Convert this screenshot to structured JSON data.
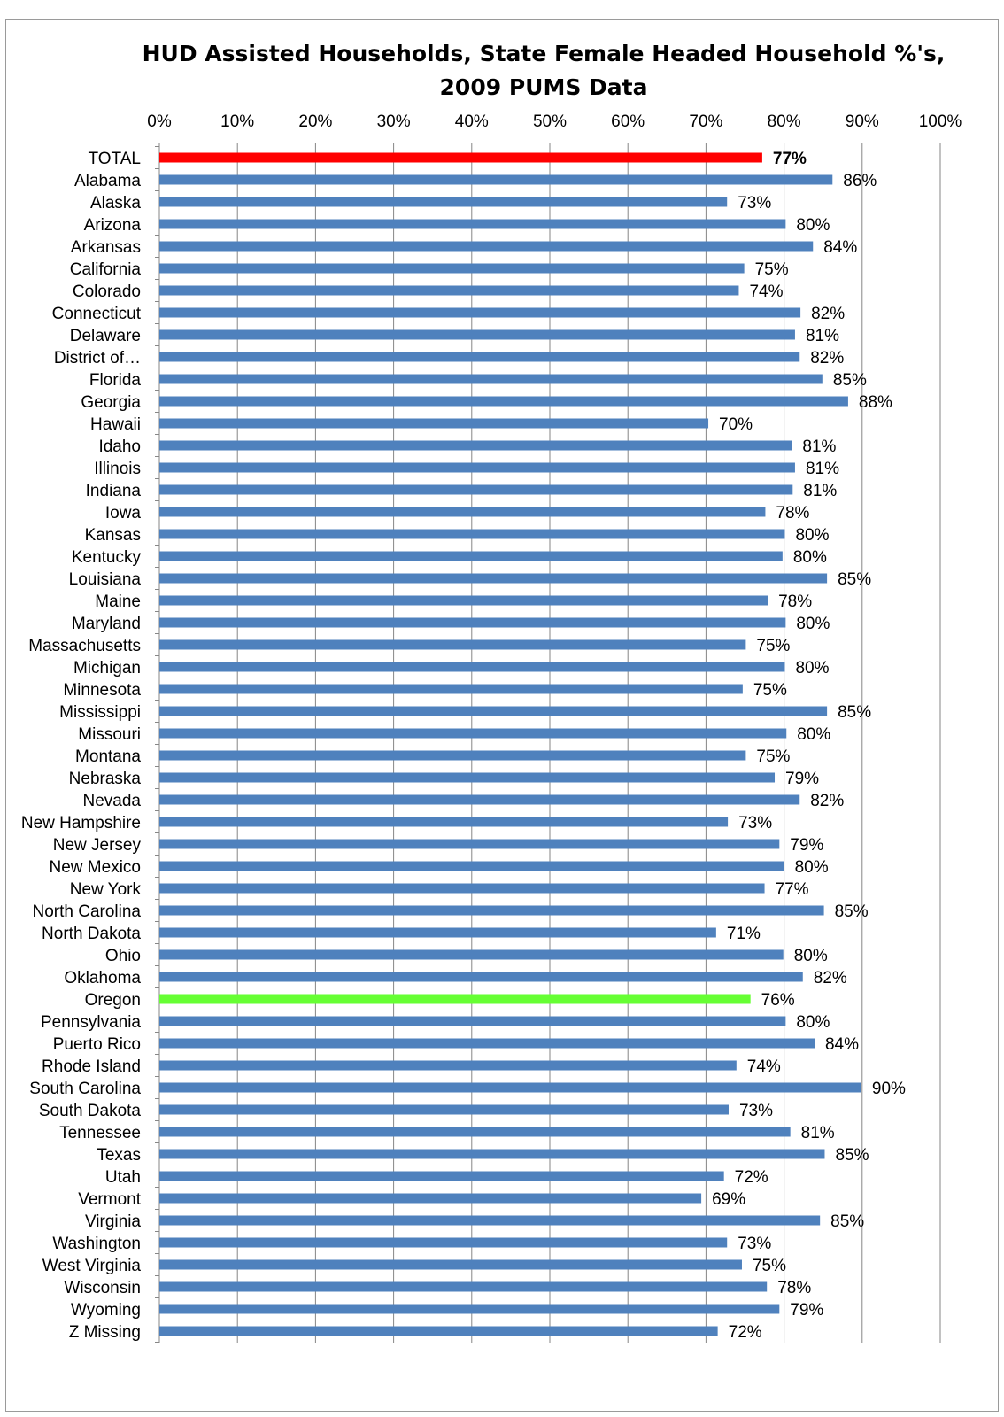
{
  "chart_data": {
    "type": "bar",
    "orientation": "horizontal",
    "title_line1": "HUD Assisted Households, State Female Headed Household %'s,",
    "title_line2": "2009 PUMS Data",
    "xlabel": "",
    "ylabel": "",
    "xlim": [
      0,
      100
    ],
    "xticks": [
      "0%",
      "10%",
      "20%",
      "30%",
      "40%",
      "50%",
      "60%",
      "70%",
      "80%",
      "90%",
      "100%"
    ],
    "grid": true,
    "colors": {
      "default": "#4F81BD",
      "highlight_total": "#FF0000",
      "highlight_oregon": "#66FF33"
    },
    "categories": [
      "TOTAL",
      "Alabama",
      "Alaska",
      "Arizona",
      "Arkansas",
      "California",
      "Colorado",
      "Connecticut",
      "Delaware",
      "District of…",
      "Florida",
      "Georgia",
      "Hawaii",
      "Idaho",
      "Illinois",
      "Indiana",
      "Iowa",
      "Kansas",
      "Kentucky",
      "Louisiana",
      "Maine",
      "Maryland",
      "Massachusetts",
      "Michigan",
      "Minnesota",
      "Mississippi",
      "Missouri",
      "Montana",
      "Nebraska",
      "Nevada",
      "New Hampshire",
      "New Jersey",
      "New Mexico",
      "New York",
      "North Carolina",
      "North Dakota",
      "Ohio",
      "Oklahoma",
      "Oregon",
      "Pennsylvania",
      "Puerto Rico",
      "Rhode Island",
      "South Carolina",
      "South Dakota",
      "Tennessee",
      "Texas",
      "Utah",
      "Vermont",
      "Virginia",
      "Washington",
      "West Virginia",
      "Wisconsin",
      "Wyoming",
      "Z Missing"
    ],
    "values": [
      77.2,
      86.2,
      72.7,
      80.2,
      83.7,
      74.9,
      74.2,
      82.1,
      81.4,
      82.0,
      84.9,
      88.2,
      70.3,
      81.0,
      81.4,
      81.1,
      77.6,
      80.1,
      79.8,
      85.5,
      77.9,
      80.2,
      75.1,
      80.1,
      74.7,
      85.5,
      80.3,
      75.1,
      78.8,
      82.0,
      72.8,
      79.4,
      80.0,
      77.5,
      85.1,
      71.3,
      79.9,
      82.4,
      75.7,
      80.2,
      83.9,
      73.9,
      89.9,
      72.9,
      80.8,
      85.2,
      72.3,
      69.4,
      84.6,
      72.7,
      74.6,
      77.8,
      79.4,
      71.5
    ],
    "labels": [
      "77%",
      "86%",
      "73%",
      "80%",
      "84%",
      "75%",
      "74%",
      "82%",
      "81%",
      "82%",
      "85%",
      "88%",
      "70%",
      "81%",
      "81%",
      "81%",
      "78%",
      "80%",
      "80%",
      "85%",
      "78%",
      "80%",
      "75%",
      "80%",
      "75%",
      "85%",
      "80%",
      "75%",
      "79%",
      "82%",
      "73%",
      "79%",
      "80%",
      "77%",
      "85%",
      "71%",
      "80%",
      "82%",
      "76%",
      "80%",
      "84%",
      "74%",
      "90%",
      "73%",
      "81%",
      "85%",
      "72%",
      "69%",
      "85%",
      "73%",
      "75%",
      "78%",
      "79%",
      "72%"
    ]
  }
}
